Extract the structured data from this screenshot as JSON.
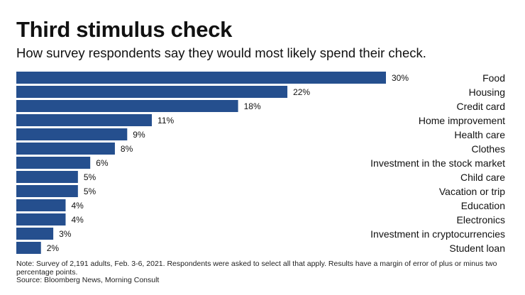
{
  "title": "Third stimulus check",
  "subtitle": "How survey respondents say they would most likely spend their check.",
  "colors": {
    "bar": "#254f8e",
    "text": "#111111",
    "divider": "#ffffff"
  },
  "chart_data": {
    "type": "bar",
    "orientation": "horizontal",
    "title": "Third stimulus check",
    "subtitle": "How survey respondents say they would most likely spend their check.",
    "xlabel": "",
    "ylabel": "",
    "unit": "%",
    "xlim": [
      0,
      30
    ],
    "grid": false,
    "categories": [
      "Food",
      "Housing",
      "Credit card",
      "Home improvement",
      "Health care",
      "Clothes",
      "Investment in the stock market",
      "Child care",
      "Vacation or trip",
      "Education",
      "Electronics",
      "Investment in cryptocurrencies",
      "Student loan"
    ],
    "values": [
      30,
      22,
      18,
      11,
      9,
      8,
      6,
      5,
      5,
      4,
      4,
      3,
      2
    ],
    "labels": [
      "30%",
      "22%",
      "18%",
      "11%",
      "9%",
      "8%",
      "6%",
      "5%",
      "5%",
      "4%",
      "4%",
      "3%",
      "2%"
    ]
  },
  "footer": {
    "note": "Note: Survey of 2,191 adults, Feb. 3-6, 2021. Respondents were asked to select all that apply. Results have a margin of error of plus or minus two percentage points.",
    "source": "Source: Bloomberg News, Morning Consult"
  }
}
